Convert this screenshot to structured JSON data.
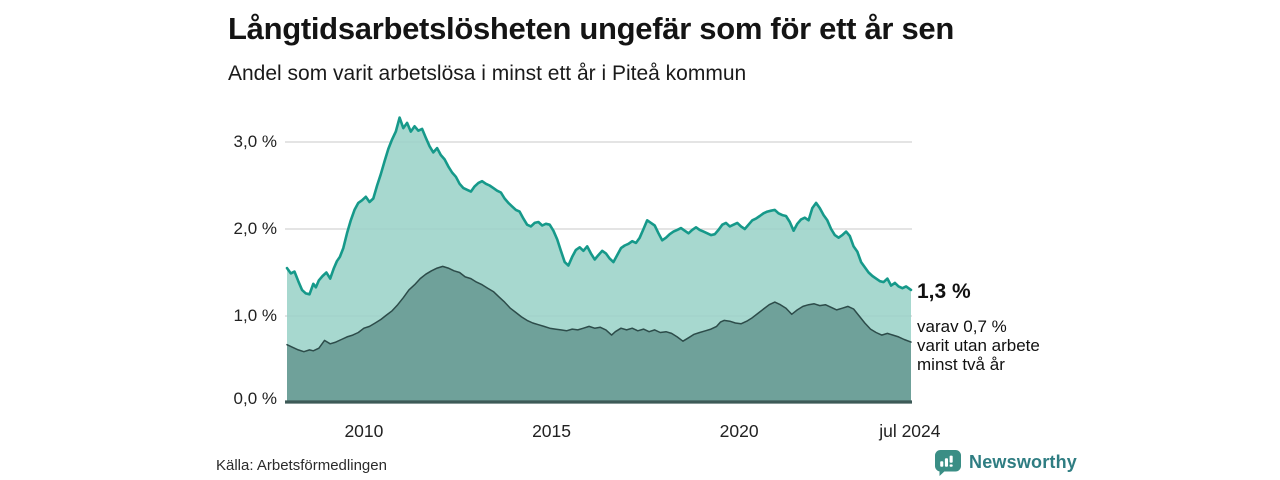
{
  "header": {
    "title": "Långtidsarbetslösheten ungefär som för ett år sen",
    "subtitle": "Andel som varit arbetslösa i minst ett år i Piteå kommun"
  },
  "annotation": {
    "value_label": "1,3 %",
    "note": "varav 0,7 %\nvarit utan arbete\nminst två år"
  },
  "source_text": "Källa: Arbetsförmedlingen",
  "branding": {
    "logo_text": "Newsworthy",
    "logo_icon": "speech-bubble-bar-chart-icon",
    "logo_color": "#3a8e85",
    "logo_text_color": "#2f7d82"
  },
  "colors": {
    "background": "#ffffff",
    "gridline": "#d4d4d4",
    "axis_line": "#3d5a57",
    "text_dark": "#141414"
  },
  "chart_data": {
    "type": "area",
    "title": "Långtidsarbetslösheten ungefär som för ett år sen",
    "subtitle": "Andel som varit arbetslösa i minst ett år i Piteå kommun",
    "xlabel": "",
    "ylabel": "",
    "x_range": [
      2007.95,
      2024.58
    ],
    "ylim": [
      0,
      3.4
    ],
    "grid": true,
    "legend_position": "none",
    "end_labels": {
      "total": "1,3 %",
      "two_years": "0,7 %"
    },
    "yticks": [
      {
        "v": 0,
        "label": "0,0 %"
      },
      {
        "v": 1,
        "label": "1,0 %"
      },
      {
        "v": 2,
        "label": "2,0 %"
      },
      {
        "v": 3,
        "label": "3,0 %"
      }
    ],
    "xticks": [
      {
        "year": 2010,
        "label": "2010"
      },
      {
        "year": 2015,
        "label": "2015"
      },
      {
        "year": 2020,
        "label": "2020"
      },
      {
        "year": 2024.55,
        "label": "jul 2024"
      }
    ],
    "series": [
      {
        "name": "Arbetslösa minst ett år (andel)",
        "line_color": "#16998a",
        "fill_color": "#98d1c7",
        "fill_opacity": 0.85,
        "line_width": 2.6,
        "end_value": 1.3,
        "points": [
          [
            2007.95,
            1.55
          ],
          [
            2008.05,
            1.49
          ],
          [
            2008.15,
            1.51
          ],
          [
            2008.25,
            1.4
          ],
          [
            2008.35,
            1.3
          ],
          [
            2008.45,
            1.26
          ],
          [
            2008.55,
            1.25
          ],
          [
            2008.65,
            1.37
          ],
          [
            2008.72,
            1.33
          ],
          [
            2008.8,
            1.41
          ],
          [
            2008.9,
            1.46
          ],
          [
            2009.0,
            1.5
          ],
          [
            2009.1,
            1.43
          ],
          [
            2009.2,
            1.55
          ],
          [
            2009.28,
            1.63
          ],
          [
            2009.36,
            1.68
          ],
          [
            2009.45,
            1.78
          ],
          [
            2009.55,
            1.95
          ],
          [
            2009.65,
            2.1
          ],
          [
            2009.75,
            2.22
          ],
          [
            2009.85,
            2.3
          ],
          [
            2009.95,
            2.33
          ],
          [
            2010.05,
            2.37
          ],
          [
            2010.15,
            2.31
          ],
          [
            2010.25,
            2.35
          ],
          [
            2010.35,
            2.5
          ],
          [
            2010.45,
            2.63
          ],
          [
            2010.55,
            2.78
          ],
          [
            2010.65,
            2.92
          ],
          [
            2010.75,
            3.03
          ],
          [
            2010.85,
            3.12
          ],
          [
            2010.95,
            3.28
          ],
          [
            2011.05,
            3.16
          ],
          [
            2011.15,
            3.22
          ],
          [
            2011.25,
            3.12
          ],
          [
            2011.35,
            3.18
          ],
          [
            2011.45,
            3.13
          ],
          [
            2011.55,
            3.15
          ],
          [
            2011.65,
            3.05
          ],
          [
            2011.75,
            2.95
          ],
          [
            2011.85,
            2.88
          ],
          [
            2011.95,
            2.93
          ],
          [
            2012.05,
            2.85
          ],
          [
            2012.15,
            2.8
          ],
          [
            2012.25,
            2.72
          ],
          [
            2012.35,
            2.65
          ],
          [
            2012.45,
            2.6
          ],
          [
            2012.55,
            2.52
          ],
          [
            2012.65,
            2.47
          ],
          [
            2012.75,
            2.45
          ],
          [
            2012.85,
            2.43
          ],
          [
            2012.95,
            2.49
          ],
          [
            2013.05,
            2.53
          ],
          [
            2013.15,
            2.55
          ],
          [
            2013.25,
            2.52
          ],
          [
            2013.35,
            2.5
          ],
          [
            2013.45,
            2.47
          ],
          [
            2013.55,
            2.44
          ],
          [
            2013.65,
            2.42
          ],
          [
            2013.75,
            2.35
          ],
          [
            2013.85,
            2.3
          ],
          [
            2013.95,
            2.26
          ],
          [
            2014.05,
            2.22
          ],
          [
            2014.15,
            2.2
          ],
          [
            2014.25,
            2.12
          ],
          [
            2014.35,
            2.05
          ],
          [
            2014.45,
            2.03
          ],
          [
            2014.55,
            2.07
          ],
          [
            2014.65,
            2.08
          ],
          [
            2014.75,
            2.04
          ],
          [
            2014.85,
            2.06
          ],
          [
            2014.95,
            2.05
          ],
          [
            2015.05,
            1.98
          ],
          [
            2015.15,
            1.88
          ],
          [
            2015.25,
            1.75
          ],
          [
            2015.35,
            1.62
          ],
          [
            2015.45,
            1.58
          ],
          [
            2015.55,
            1.68
          ],
          [
            2015.65,
            1.76
          ],
          [
            2015.75,
            1.79
          ],
          [
            2015.85,
            1.75
          ],
          [
            2015.95,
            1.8
          ],
          [
            2016.05,
            1.72
          ],
          [
            2016.15,
            1.65
          ],
          [
            2016.25,
            1.7
          ],
          [
            2016.35,
            1.75
          ],
          [
            2016.45,
            1.72
          ],
          [
            2016.55,
            1.66
          ],
          [
            2016.65,
            1.62
          ],
          [
            2016.75,
            1.7
          ],
          [
            2016.85,
            1.78
          ],
          [
            2016.95,
            1.81
          ],
          [
            2017.05,
            1.83
          ],
          [
            2017.15,
            1.86
          ],
          [
            2017.25,
            1.84
          ],
          [
            2017.35,
            1.9
          ],
          [
            2017.45,
            2.0
          ],
          [
            2017.55,
            2.1
          ],
          [
            2017.65,
            2.07
          ],
          [
            2017.75,
            2.04
          ],
          [
            2017.85,
            1.95
          ],
          [
            2017.95,
            1.87
          ],
          [
            2018.05,
            1.9
          ],
          [
            2018.15,
            1.94
          ],
          [
            2018.25,
            1.97
          ],
          [
            2018.35,
            1.99
          ],
          [
            2018.45,
            2.01
          ],
          [
            2018.55,
            1.98
          ],
          [
            2018.65,
            1.95
          ],
          [
            2018.75,
            1.99
          ],
          [
            2018.85,
            2.02
          ],
          [
            2018.95,
            1.99
          ],
          [
            2019.05,
            1.97
          ],
          [
            2019.15,
            1.95
          ],
          [
            2019.25,
            1.93
          ],
          [
            2019.35,
            1.94
          ],
          [
            2019.45,
            1.99
          ],
          [
            2019.55,
            2.05
          ],
          [
            2019.65,
            2.07
          ],
          [
            2019.75,
            2.03
          ],
          [
            2019.85,
            2.05
          ],
          [
            2019.95,
            2.07
          ],
          [
            2020.05,
            2.03
          ],
          [
            2020.15,
            2.0
          ],
          [
            2020.25,
            2.05
          ],
          [
            2020.35,
            2.1
          ],
          [
            2020.45,
            2.12
          ],
          [
            2020.55,
            2.15
          ],
          [
            2020.65,
            2.18
          ],
          [
            2020.75,
            2.2
          ],
          [
            2020.85,
            2.21
          ],
          [
            2020.95,
            2.22
          ],
          [
            2021.05,
            2.18
          ],
          [
            2021.15,
            2.16
          ],
          [
            2021.25,
            2.15
          ],
          [
            2021.35,
            2.08
          ],
          [
            2021.45,
            1.98
          ],
          [
            2021.55,
            2.06
          ],
          [
            2021.65,
            2.11
          ],
          [
            2021.75,
            2.13
          ],
          [
            2021.85,
            2.1
          ],
          [
            2021.95,
            2.24
          ],
          [
            2022.05,
            2.3
          ],
          [
            2022.15,
            2.24
          ],
          [
            2022.25,
            2.16
          ],
          [
            2022.35,
            2.1
          ],
          [
            2022.45,
            2.0
          ],
          [
            2022.55,
            1.93
          ],
          [
            2022.65,
            1.9
          ],
          [
            2022.75,
            1.93
          ],
          [
            2022.85,
            1.97
          ],
          [
            2022.95,
            1.92
          ],
          [
            2023.05,
            1.8
          ],
          [
            2023.15,
            1.74
          ],
          [
            2023.25,
            1.62
          ],
          [
            2023.35,
            1.56
          ],
          [
            2023.45,
            1.5
          ],
          [
            2023.55,
            1.46
          ],
          [
            2023.65,
            1.43
          ],
          [
            2023.75,
            1.4
          ],
          [
            2023.85,
            1.39
          ],
          [
            2023.95,
            1.43
          ],
          [
            2024.05,
            1.35
          ],
          [
            2024.15,
            1.38
          ],
          [
            2024.25,
            1.34
          ],
          [
            2024.35,
            1.32
          ],
          [
            2024.45,
            1.34
          ],
          [
            2024.58,
            1.3
          ]
        ]
      },
      {
        "name": "Utan arbete minst två år (andel)",
        "line_color": "#2d4c4a",
        "fill_color": "#6fa19a",
        "fill_opacity": 1,
        "line_width": 1.5,
        "end_value": 0.7,
        "points": [
          [
            2007.95,
            0.67
          ],
          [
            2008.1,
            0.64
          ],
          [
            2008.25,
            0.61
          ],
          [
            2008.4,
            0.59
          ],
          [
            2008.55,
            0.61
          ],
          [
            2008.65,
            0.6
          ],
          [
            2008.8,
            0.63
          ],
          [
            2008.95,
            0.72
          ],
          [
            2009.1,
            0.68
          ],
          [
            2009.25,
            0.7
          ],
          [
            2009.4,
            0.73
          ],
          [
            2009.55,
            0.76
          ],
          [
            2009.7,
            0.78
          ],
          [
            2009.85,
            0.81
          ],
          [
            2010.0,
            0.86
          ],
          [
            2010.15,
            0.88
          ],
          [
            2010.3,
            0.92
          ],
          [
            2010.45,
            0.96
          ],
          [
            2010.6,
            1.01
          ],
          [
            2010.75,
            1.06
          ],
          [
            2010.9,
            1.13
          ],
          [
            2011.05,
            1.21
          ],
          [
            2011.2,
            1.3
          ],
          [
            2011.35,
            1.36
          ],
          [
            2011.5,
            1.43
          ],
          [
            2011.65,
            1.48
          ],
          [
            2011.8,
            1.52
          ],
          [
            2011.95,
            1.55
          ],
          [
            2012.1,
            1.57
          ],
          [
            2012.25,
            1.55
          ],
          [
            2012.4,
            1.52
          ],
          [
            2012.55,
            1.5
          ],
          [
            2012.7,
            1.45
          ],
          [
            2012.85,
            1.43
          ],
          [
            2013.0,
            1.39
          ],
          [
            2013.15,
            1.36
          ],
          [
            2013.3,
            1.32
          ],
          [
            2013.45,
            1.28
          ],
          [
            2013.6,
            1.22
          ],
          [
            2013.75,
            1.16
          ],
          [
            2013.9,
            1.09
          ],
          [
            2014.05,
            1.04
          ],
          [
            2014.2,
            0.99
          ],
          [
            2014.35,
            0.95
          ],
          [
            2014.5,
            0.92
          ],
          [
            2014.65,
            0.9
          ],
          [
            2014.8,
            0.88
          ],
          [
            2014.95,
            0.86
          ],
          [
            2015.1,
            0.85
          ],
          [
            2015.25,
            0.84
          ],
          [
            2015.4,
            0.83
          ],
          [
            2015.55,
            0.85
          ],
          [
            2015.7,
            0.84
          ],
          [
            2015.85,
            0.86
          ],
          [
            2016.0,
            0.88
          ],
          [
            2016.15,
            0.86
          ],
          [
            2016.3,
            0.87
          ],
          [
            2016.45,
            0.84
          ],
          [
            2016.6,
            0.78
          ],
          [
            2016.7,
            0.82
          ],
          [
            2016.85,
            0.86
          ],
          [
            2017.0,
            0.84
          ],
          [
            2017.15,
            0.86
          ],
          [
            2017.3,
            0.83
          ],
          [
            2017.45,
            0.85
          ],
          [
            2017.6,
            0.82
          ],
          [
            2017.75,
            0.84
          ],
          [
            2017.9,
            0.81
          ],
          [
            2018.05,
            0.82
          ],
          [
            2018.2,
            0.8
          ],
          [
            2018.35,
            0.76
          ],
          [
            2018.5,
            0.71
          ],
          [
            2018.65,
            0.75
          ],
          [
            2018.8,
            0.79
          ],
          [
            2018.95,
            0.81
          ],
          [
            2019.1,
            0.83
          ],
          [
            2019.25,
            0.85
          ],
          [
            2019.4,
            0.88
          ],
          [
            2019.5,
            0.93
          ],
          [
            2019.6,
            0.95
          ],
          [
            2019.75,
            0.94
          ],
          [
            2019.9,
            0.92
          ],
          [
            2020.05,
            0.91
          ],
          [
            2020.2,
            0.94
          ],
          [
            2020.35,
            0.98
          ],
          [
            2020.5,
            1.03
          ],
          [
            2020.65,
            1.08
          ],
          [
            2020.8,
            1.13
          ],
          [
            2020.95,
            1.16
          ],
          [
            2021.1,
            1.13
          ],
          [
            2021.25,
            1.09
          ],
          [
            2021.4,
            1.02
          ],
          [
            2021.55,
            1.07
          ],
          [
            2021.7,
            1.11
          ],
          [
            2021.85,
            1.13
          ],
          [
            2022.0,
            1.14
          ],
          [
            2022.15,
            1.12
          ],
          [
            2022.3,
            1.13
          ],
          [
            2022.45,
            1.1
          ],
          [
            2022.6,
            1.07
          ],
          [
            2022.75,
            1.09
          ],
          [
            2022.9,
            1.11
          ],
          [
            2023.05,
            1.08
          ],
          [
            2023.2,
            1.0
          ],
          [
            2023.35,
            0.92
          ],
          [
            2023.5,
            0.85
          ],
          [
            2023.65,
            0.81
          ],
          [
            2023.8,
            0.78
          ],
          [
            2023.95,
            0.8
          ],
          [
            2024.1,
            0.78
          ],
          [
            2024.25,
            0.76
          ],
          [
            2024.4,
            0.73
          ],
          [
            2024.58,
            0.7
          ]
        ]
      }
    ]
  }
}
